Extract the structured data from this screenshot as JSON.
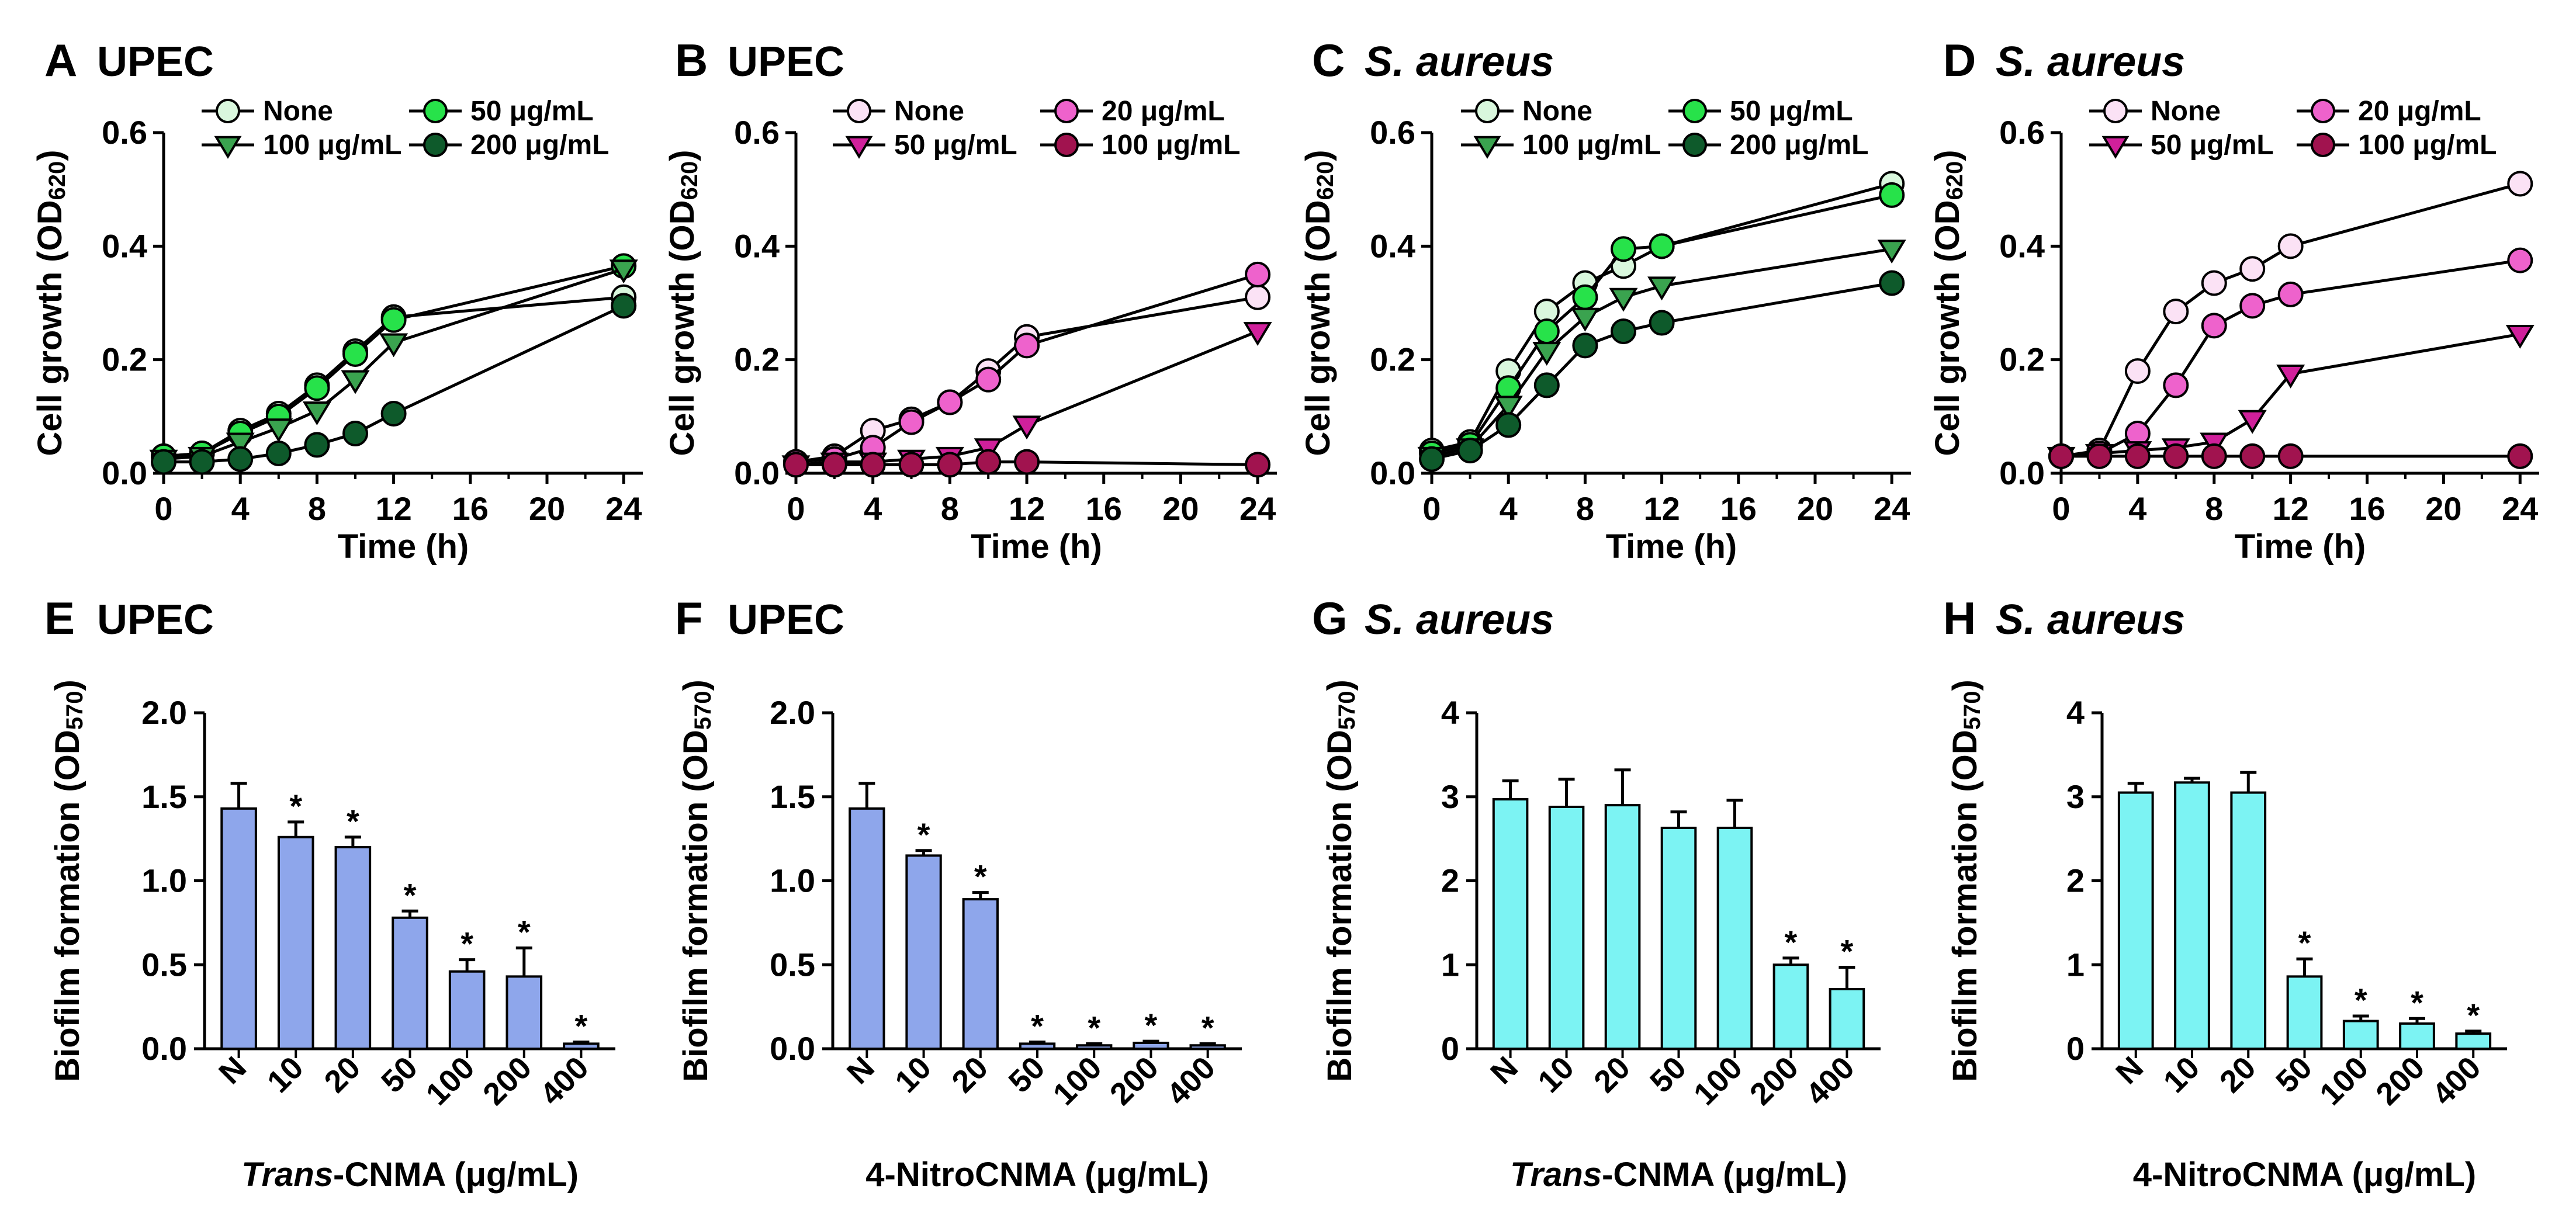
{
  "colors": {
    "line": "#000000",
    "none_upec": "#d9f7dd",
    "dose1_upec": "#27e24a",
    "dose2_upec": "#3aa34f",
    "dose3_upec": "#0e5a2b",
    "none_nitro": "#fbe2f5",
    "dose1_nitro": "#ee62cc",
    "dose2_nitro": "#d0209b",
    "dose3_nitro": "#a1134f",
    "bar_upec": "#8ea6eb",
    "bar_saureus": "#7cf3f3"
  },
  "chart_data": [
    {
      "id": "A",
      "type": "line",
      "panel_label": "A",
      "title": "UPEC",
      "title_italic": false,
      "xlabel": "Time (h)",
      "ylabel_main": "Cell growth (OD",
      "ylabel_sub": "620",
      "ylabel_end": ")",
      "xlim": [
        0,
        25
      ],
      "ylim": [
        0,
        0.6
      ],
      "xticks": [
        0,
        4,
        8,
        12,
        16,
        20,
        24
      ],
      "yticks": [
        "0.0",
        "0.2",
        "0.4",
        "0.6"
      ],
      "x": [
        0,
        2,
        4,
        6,
        8,
        10,
        12,
        24
      ],
      "legend_layout": "2x2",
      "series": [
        {
          "name": "None",
          "marker": "circle",
          "color": "#d9f7dd",
          "values": [
            0.03,
            0.035,
            0.075,
            0.105,
            0.155,
            0.215,
            0.275,
            0.31
          ]
        },
        {
          "name": "50 μg/mL",
          "marker": "circle",
          "color": "#27e24a",
          "values": [
            0.03,
            0.035,
            0.07,
            0.1,
            0.15,
            0.21,
            0.27,
            0.365
          ]
        },
        {
          "name": "100 μg/mL",
          "marker": "triangle",
          "color": "#3aa34f",
          "values": [
            0.025,
            0.03,
            0.055,
            0.08,
            0.11,
            0.165,
            0.23,
            0.36
          ]
        },
        {
          "name": "200 μg/mL",
          "marker": "circle",
          "color": "#0e5a2b",
          "values": [
            0.02,
            0.02,
            0.025,
            0.035,
            0.05,
            0.07,
            0.105,
            0.295
          ]
        }
      ]
    },
    {
      "id": "B",
      "type": "line",
      "panel_label": "B",
      "title": "UPEC",
      "title_italic": false,
      "xlabel": "Time (h)",
      "ylabel_main": "Cell growth (OD",
      "ylabel_sub": "620",
      "ylabel_end": ")",
      "xlim": [
        0,
        25
      ],
      "ylim": [
        0,
        0.6
      ],
      "xticks": [
        0,
        4,
        8,
        12,
        16,
        20,
        24
      ],
      "yticks": [
        "0.0",
        "0.2",
        "0.4",
        "0.6"
      ],
      "x": [
        0,
        2,
        4,
        6,
        8,
        10,
        12,
        24
      ],
      "legend_layout": "2x2",
      "series": [
        {
          "name": "None",
          "marker": "circle",
          "color": "#fbe2f5",
          "values": [
            0.02,
            0.03,
            0.075,
            0.095,
            0.125,
            0.18,
            0.24,
            0.31
          ]
        },
        {
          "name": "20 μg/mL",
          "marker": "circle",
          "color": "#ee62cc",
          "values": [
            0.02,
            0.025,
            0.045,
            0.09,
            0.125,
            0.165,
            0.225,
            0.35
          ]
        },
        {
          "name": "50 μg/mL",
          "marker": "triangle",
          "color": "#d0209b",
          "values": [
            0.015,
            0.02,
            0.02,
            0.025,
            0.03,
            0.045,
            0.085,
            0.25
          ]
        },
        {
          "name": "100 μg/mL",
          "marker": "circle",
          "color": "#a1134f",
          "values": [
            0.015,
            0.015,
            0.015,
            0.015,
            0.015,
            0.02,
            0.02,
            0.015
          ]
        }
      ]
    },
    {
      "id": "C",
      "type": "line",
      "panel_label": "C",
      "title": "S. aureus",
      "title_italic": true,
      "xlabel": "Time (h)",
      "ylabel_main": "Cell growth (OD",
      "ylabel_sub": "620",
      "ylabel_end": ")",
      "xlim": [
        0,
        25
      ],
      "ylim": [
        0,
        0.6
      ],
      "xticks": [
        0,
        4,
        8,
        12,
        16,
        20,
        24
      ],
      "yticks": [
        "0.0",
        "0.2",
        "0.4",
        "0.6"
      ],
      "x": [
        0,
        2,
        4,
        6,
        8,
        10,
        12,
        24
      ],
      "legend_layout": "2x2",
      "series": [
        {
          "name": "None",
          "marker": "circle",
          "color": "#d9f7dd",
          "values": [
            0.04,
            0.055,
            0.18,
            0.285,
            0.335,
            0.365,
            0.4,
            0.51
          ]
        },
        {
          "name": "50 μg/mL",
          "marker": "circle",
          "color": "#27e24a",
          "values": [
            0.035,
            0.05,
            0.15,
            0.25,
            0.31,
            0.395,
            0.4,
            0.49
          ]
        },
        {
          "name": "100 μg/mL",
          "marker": "triangle",
          "color": "#3aa34f",
          "values": [
            0.03,
            0.045,
            0.12,
            0.215,
            0.275,
            0.31,
            0.33,
            0.395
          ]
        },
        {
          "name": "200 μg/mL",
          "marker": "circle",
          "color": "#0e5a2b",
          "values": [
            0.025,
            0.04,
            0.085,
            0.155,
            0.225,
            0.25,
            0.265,
            0.335
          ]
        }
      ]
    },
    {
      "id": "D",
      "type": "line",
      "panel_label": "D",
      "title": "S. aureus",
      "title_italic": true,
      "xlabel": "Time (h)",
      "ylabel_main": "Cell growth (OD",
      "ylabel_sub": "620",
      "ylabel_end": ")",
      "xlim": [
        0,
        25
      ],
      "ylim": [
        0,
        0.6
      ],
      "xticks": [
        0,
        4,
        8,
        12,
        16,
        20,
        24
      ],
      "yticks": [
        "0.0",
        "0.2",
        "0.4",
        "0.6"
      ],
      "x": [
        0,
        2,
        4,
        6,
        8,
        10,
        12,
        24
      ],
      "legend_layout": "2x2",
      "series": [
        {
          "name": "None",
          "marker": "circle",
          "color": "#fbe2f5",
          "values": [
            0.03,
            0.04,
            0.18,
            0.285,
            0.335,
            0.36,
            0.4,
            0.51
          ]
        },
        {
          "name": "20 μg/mL",
          "marker": "circle",
          "color": "#ee62cc",
          "values": [
            0.03,
            0.035,
            0.07,
            0.155,
            0.26,
            0.295,
            0.315,
            0.375
          ]
        },
        {
          "name": "50 μg/mL",
          "marker": "triangle",
          "color": "#d0209b",
          "values": [
            0.03,
            0.035,
            0.04,
            0.045,
            0.055,
            0.095,
            0.175,
            0.245
          ]
        },
        {
          "name": "100 μg/mL",
          "marker": "circle",
          "color": "#a1134f",
          "values": [
            0.03,
            0.03,
            0.03,
            0.03,
            0.03,
            0.03,
            0.03,
            0.03
          ]
        }
      ]
    },
    {
      "id": "E",
      "type": "bar",
      "panel_label": "E",
      "title": "UPEC",
      "title_italic": false,
      "xlabel_italic": "Trans",
      "xlabel": "-CNMA (μg/mL)",
      "ylabel_main": "Biofilm formation (OD",
      "ylabel_sub": "570",
      "ylabel_end": ")",
      "ylim": [
        0,
        2.0
      ],
      "yticks": [
        "0.0",
        "0.5",
        "1.0",
        "1.5",
        "2.0"
      ],
      "categories": [
        "N",
        "10",
        "20",
        "50",
        "100",
        "200",
        "400"
      ],
      "values": [
        1.43,
        1.26,
        1.2,
        0.78,
        0.46,
        0.43,
        0.03
      ],
      "errors": [
        0.15,
        0.09,
        0.06,
        0.04,
        0.07,
        0.17,
        0.01
      ],
      "significant": [
        "",
        "*",
        "*",
        "*",
        "*",
        "*",
        "*"
      ],
      "color": "#8ea6eb"
    },
    {
      "id": "F",
      "type": "bar",
      "panel_label": "F",
      "title": "UPEC",
      "title_italic": false,
      "xlabel_italic": "",
      "xlabel": "4-NitroCNMA (μg/mL)",
      "ylabel_main": "Biofilm formation (OD",
      "ylabel_sub": "570",
      "ylabel_end": ")",
      "ylim": [
        0,
        2.0
      ],
      "yticks": [
        "0.0",
        "0.5",
        "1.0",
        "1.5",
        "2.0"
      ],
      "categories": [
        "N",
        "10",
        "20",
        "50",
        "100",
        "200",
        "400"
      ],
      "values": [
        1.43,
        1.15,
        0.89,
        0.03,
        0.02,
        0.035,
        0.02
      ],
      "errors": [
        0.15,
        0.03,
        0.04,
        0.01,
        0.01,
        0.01,
        0.01
      ],
      "significant": [
        "",
        "*",
        "*",
        "*",
        "*",
        "*",
        "*"
      ],
      "color": "#8ea6eb"
    },
    {
      "id": "G",
      "type": "bar",
      "panel_label": "G",
      "title": "S. aureus",
      "title_italic": true,
      "xlabel_italic": "Trans",
      "xlabel": "-CNMA (μg/mL)",
      "ylabel_main": "Biofilm formation (OD",
      "ylabel_sub": "570",
      "ylabel_end": ")",
      "ylim": [
        0,
        4
      ],
      "yticks": [
        "0",
        "1",
        "2",
        "3",
        "4"
      ],
      "categories": [
        "N",
        "10",
        "20",
        "50",
        "100",
        "200",
        "400"
      ],
      "values": [
        2.97,
        2.88,
        2.9,
        2.63,
        2.63,
        1.0,
        0.71
      ],
      "errors": [
        0.22,
        0.33,
        0.42,
        0.19,
        0.33,
        0.08,
        0.26
      ],
      "significant": [
        "",
        "",
        "",
        "",
        "",
        "*",
        "*"
      ],
      "color": "#7cf3f3"
    },
    {
      "id": "H",
      "type": "bar",
      "panel_label": "H",
      "title": "S. aureus",
      "title_italic": true,
      "xlabel_italic": "",
      "xlabel": "4-NitroCNMA (μg/mL)",
      "ylabel_main": "Biofilm formation (OD",
      "ylabel_sub": "570",
      "ylabel_end": ")",
      "ylim": [
        0,
        4
      ],
      "yticks": [
        "0",
        "1",
        "2",
        "3",
        "4"
      ],
      "categories": [
        "N",
        "10",
        "20",
        "50",
        "100",
        "200",
        "400"
      ],
      "values": [
        3.05,
        3.17,
        3.05,
        0.86,
        0.33,
        0.3,
        0.18
      ],
      "errors": [
        0.11,
        0.05,
        0.24,
        0.21,
        0.06,
        0.06,
        0.03
      ],
      "significant": [
        "",
        "",
        "",
        "*",
        "*",
        "*",
        "*"
      ],
      "color": "#7cf3f3"
    }
  ]
}
